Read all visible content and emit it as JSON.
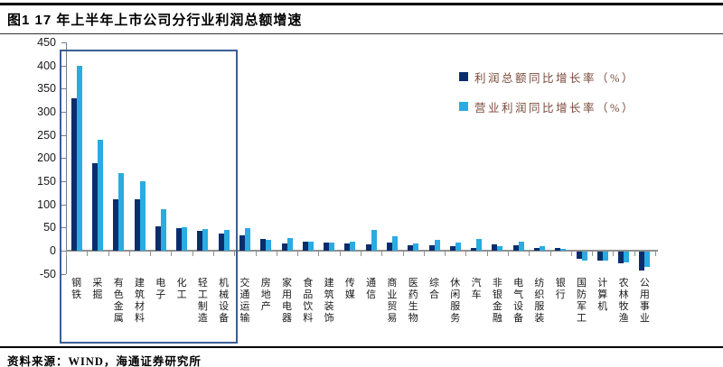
{
  "title": "图1  17 年上半年上市公司分行业利润总额增速",
  "source": "资料来源：WIND，海通证券研究所",
  "colors": {
    "profit_total": "#0a2e6d",
    "operating_profit": "#2aabe2",
    "highlight_box": "#3a5f96",
    "legend_text": "#7a4a3a",
    "axis_gray": "#909090"
  },
  "legend": [
    {
      "label": "利润总额同比增长率（%）",
      "series_key": "profit_total"
    },
    {
      "label": "营业利润同比增长率（%）",
      "series_key": "operating_profit"
    }
  ],
  "chart_data": {
    "type": "bar",
    "title": "17 年上半年上市公司分行业利润总额增速",
    "xlabel": "",
    "ylabel": "",
    "ylim": [
      -50,
      450
    ],
    "ytick_step": 50,
    "grid": false,
    "legend_position": "top-right",
    "categories": [
      "钢铁",
      "采掘",
      "有色金属",
      "建筑材料",
      "电子",
      "化工",
      "轻工制造",
      "机械设备",
      "交通运输",
      "房地产",
      "家用电器",
      "食品饮料",
      "建筑装饰",
      "传媒",
      "通信",
      "商业贸易",
      "医药生物",
      "综合",
      "休闲服务",
      "汽车",
      "非银金融",
      "电气设备",
      "纺织服装",
      "银行",
      "国防军工",
      "计算机",
      "农林牧渔",
      "公用事业"
    ],
    "series": [
      {
        "name": "利润总额同比增长率（%）",
        "values": [
          330,
          190,
          112,
          112,
          53,
          48,
          42,
          38,
          33,
          25,
          15,
          20,
          17,
          15,
          13,
          17,
          12,
          12,
          10,
          6,
          13,
          12,
          5,
          5,
          -15,
          -19,
          -25,
          -40
        ]
      },
      {
        "name": "营业利润同比增长率（%）",
        "values": [
          400,
          240,
          168,
          150,
          90,
          50,
          46,
          44,
          48,
          24,
          27,
          20,
          17,
          20,
          44,
          31,
          16,
          23,
          18,
          25,
          10,
          20,
          10,
          4,
          -20,
          -19,
          -24,
          -33
        ]
      }
    ],
    "highlight_box_range": [
      "钢铁",
      "机械设备"
    ]
  }
}
